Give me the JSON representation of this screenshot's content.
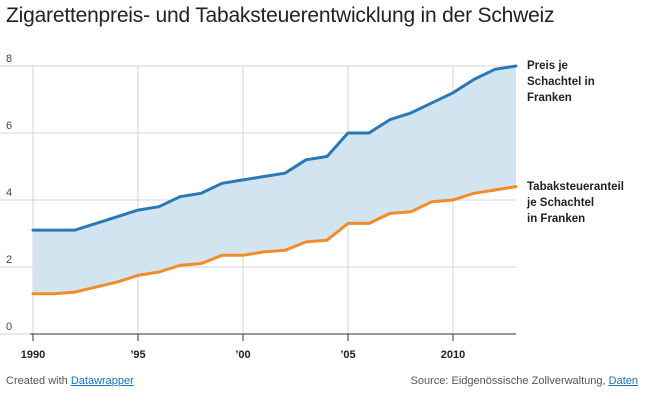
{
  "title": "Zigarettenpreis- und Tabaksteuerentwicklung in der Schweiz",
  "footer": {
    "created_prefix": "Created with",
    "created_link": "Datawrapper",
    "source_prefix": "Source: Eidgenössische Zollverwaltung,",
    "source_link": "Daten"
  },
  "chart_data": {
    "type": "area",
    "title": "Zigarettenpreis- und Tabaksteuerentwicklung in der Schweiz",
    "xlabel": "",
    "ylabel": "",
    "xlim": [
      1990,
      2013
    ],
    "ylim": [
      0,
      8
    ],
    "y_ticks": [
      0,
      2,
      4,
      6,
      8
    ],
    "x_ticks": [
      {
        "value": 1990,
        "label": "1990"
      },
      {
        "value": 1995,
        "label": "'95"
      },
      {
        "value": 2000,
        "label": "'00"
      },
      {
        "value": 2005,
        "label": "'05"
      },
      {
        "value": 2010,
        "label": "2010"
      }
    ],
    "grid": true,
    "fill_between_series": true,
    "fill_color": "#d3e4f1",
    "x": [
      1990,
      1991,
      1992,
      1993,
      1994,
      1995,
      1996,
      1997,
      1998,
      1999,
      2000,
      2001,
      2002,
      2003,
      2004,
      2005,
      2006,
      2007,
      2008,
      2009,
      2010,
      2011,
      2012,
      2013
    ],
    "series": [
      {
        "name": "Preis je Schachtel in Franken",
        "label_lines": [
          "Preis je",
          "Schachtel in",
          "Franken"
        ],
        "color": "#2a78b5",
        "values": [
          3.1,
          3.1,
          3.1,
          3.3,
          3.5,
          3.7,
          3.8,
          4.1,
          4.2,
          4.5,
          4.6,
          4.7,
          4.8,
          5.2,
          5.3,
          6.0,
          6.0,
          6.4,
          6.6,
          6.9,
          7.2,
          7.6,
          7.9,
          8.0
        ]
      },
      {
        "name": "Tabaksteueranteil je Schachtel in Franken",
        "label_lines": [
          "Tabaksteueranteil",
          "je Schachtel",
          "in Franken"
        ],
        "color": "#f28c28",
        "values": [
          1.2,
          1.2,
          1.25,
          1.4,
          1.55,
          1.75,
          1.85,
          2.05,
          2.1,
          2.35,
          2.35,
          2.45,
          2.5,
          2.75,
          2.8,
          3.3,
          3.3,
          3.6,
          3.65,
          3.95,
          4.0,
          4.2,
          4.3,
          4.4
        ]
      }
    ]
  }
}
